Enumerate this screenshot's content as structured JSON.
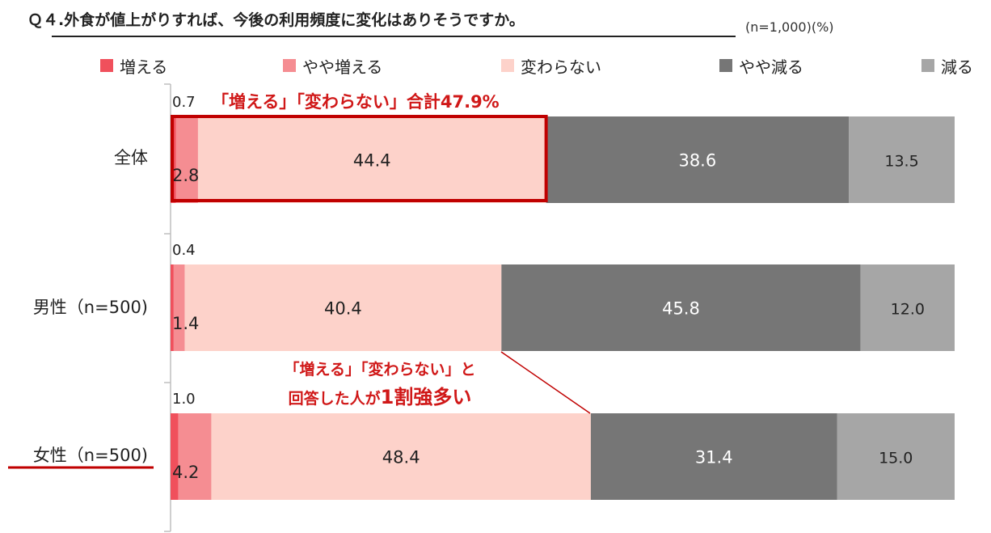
{
  "title": "Ｑ４.外食が値上がりすれば、今後の利用頻度に変化はありそうですか。",
  "note": "(n=1,000)(%)",
  "colors": {
    "increase": "#f0505c",
    "slightly_increase": "#f58d92",
    "no_change": "#fdd2ca",
    "slightly_decrease": "#767676",
    "decrease": "#a6a6a6",
    "highlight": "#c00000",
    "annotation_text": "#d01818"
  },
  "legend": [
    {
      "label": "増える",
      "color": "#f0505c"
    },
    {
      "label": "やや増える",
      "color": "#f58d92"
    },
    {
      "label": "変わらない",
      "color": "#fdd2ca"
    },
    {
      "label": "やや減る",
      "color": "#767676"
    },
    {
      "label": "減る",
      "color": "#a6a6a6"
    }
  ],
  "chart_data": {
    "type": "bar",
    "orientation": "horizontal",
    "stacked": true,
    "xlim": [
      0,
      100
    ],
    "categories": [
      "全体",
      "男性（n=500)",
      "女性（n=500)"
    ],
    "series": [
      {
        "name": "増える",
        "values": [
          0.7,
          0.4,
          1.0
        ]
      },
      {
        "name": "やや増える",
        "values": [
          2.8,
          1.4,
          4.2
        ]
      },
      {
        "name": "変わらない",
        "values": [
          44.4,
          40.4,
          48.4
        ]
      },
      {
        "name": "やや減る",
        "values": [
          38.6,
          45.8,
          31.4
        ]
      },
      {
        "name": "減る",
        "values": [
          13.5,
          12.0,
          15.0
        ]
      }
    ],
    "annotations": {
      "total_label": "「増える」「変わらない」合計47.9%",
      "callout_line1": "「増える」「変わらない」と",
      "callout_line2_prefix": "回答した人が",
      "callout_line2_emph": "1割強多い"
    }
  }
}
